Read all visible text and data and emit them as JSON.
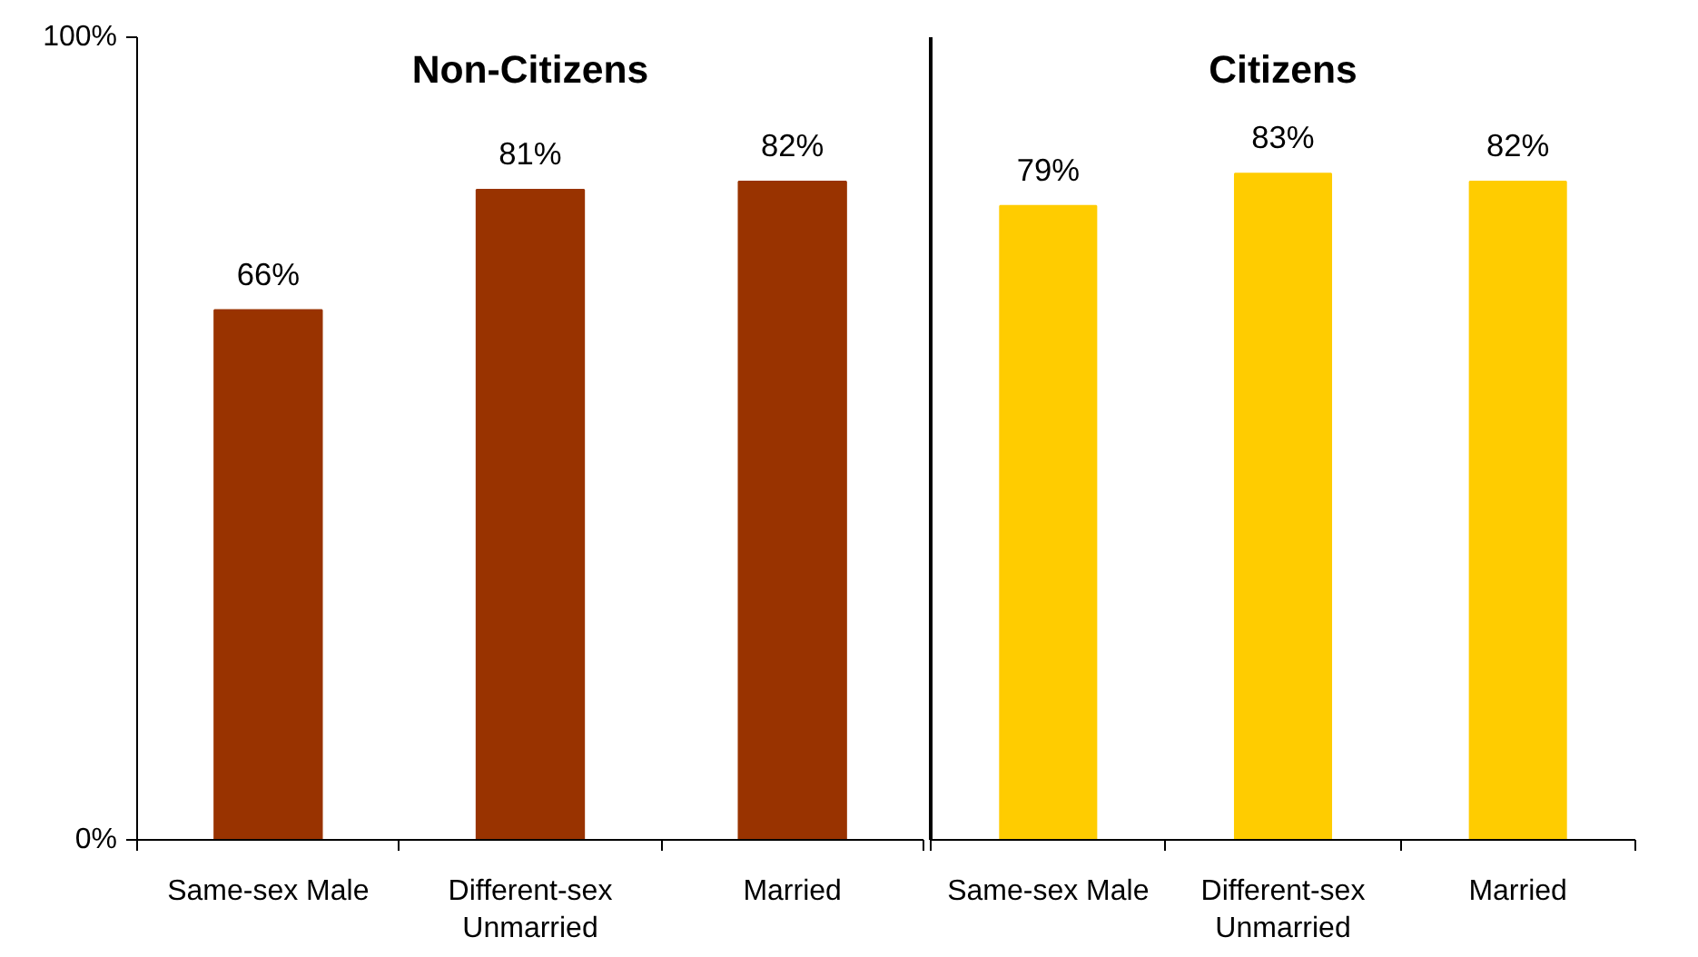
{
  "chart_data": [
    {
      "type": "bar",
      "title": "Non-Citizens",
      "categories": [
        "Same-sex Male",
        "Different-sex Unmarried",
        "Married"
      ],
      "values": [
        66,
        81,
        82
      ],
      "colors": [
        "#993300",
        "#993300",
        "#993300"
      ],
      "value_labels": [
        "66%",
        "81%",
        "82%"
      ],
      "ylim": [
        0,
        100
      ],
      "yticks": [
        {
          "value": 0,
          "label": "0%"
        },
        {
          "value": 100,
          "label": "100%"
        }
      ],
      "grid": false
    },
    {
      "type": "bar",
      "title": "Citizens",
      "categories": [
        "Same-sex Male",
        "Different-sex Unmarried",
        "Married"
      ],
      "values": [
        79,
        83,
        82
      ],
      "colors": [
        "#ffcc00",
        "#ffcc00",
        "#ffcc00"
      ],
      "value_labels": [
        "79%",
        "83%",
        "82%"
      ],
      "ylim": [
        0,
        100
      ],
      "tick_labels": "x",
      "grid": false
    }
  ]
}
